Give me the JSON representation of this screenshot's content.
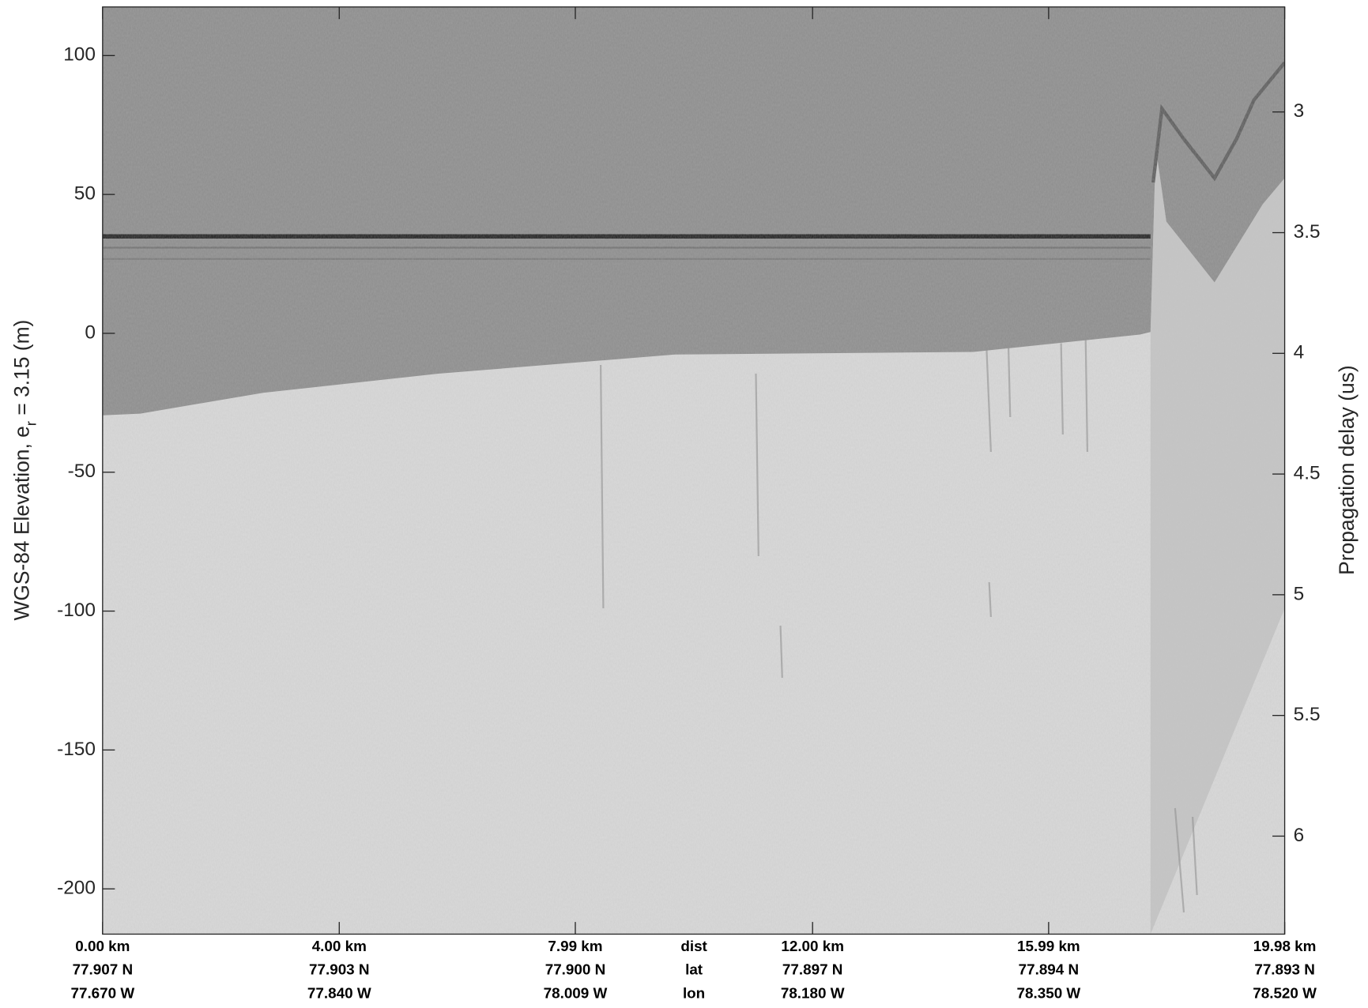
{
  "chart_data": {
    "type": "echogram",
    "ylabel": "WGS-84 Elevation, e",
    "ylabel_sub": "r",
    "ylabel_rest": " = 3.15 (m)",
    "y2label": "Propagation delay (us)",
    "ylim": [
      -216.3,
      117.5
    ],
    "yticks": [
      -200,
      -150,
      -100,
      -50,
      0,
      50,
      100
    ],
    "y2lim": [
      2.565,
      6.406
    ],
    "y2ticks": [
      3,
      3.5,
      4,
      4.5,
      5,
      5.5,
      6
    ],
    "xlim": [
      0,
      19.98
    ],
    "xticks": [
      {
        "value": 0,
        "label": "0.00 km"
      },
      {
        "value": 4,
        "label": "4.00 km"
      },
      {
        "value": 7.99,
        "label": "7.99 km"
      },
      {
        "value": 12,
        "label": "12.00 km"
      },
      {
        "value": 15.99,
        "label": "15.99 km"
      },
      {
        "value": 19.98,
        "label": "19.98 km"
      }
    ],
    "row_labels": [
      "dist",
      "lat",
      "lon"
    ],
    "lat_labels": [
      "77.907 N",
      "77.903 N",
      "77.900 N",
      "77.897 N",
      "77.894 N",
      "77.893 N"
    ],
    "lon_labels": [
      "77.670 W",
      "77.840 W",
      "78.009 W",
      "78.180 W",
      "78.350 W",
      "78.520 W"
    ]
  }
}
